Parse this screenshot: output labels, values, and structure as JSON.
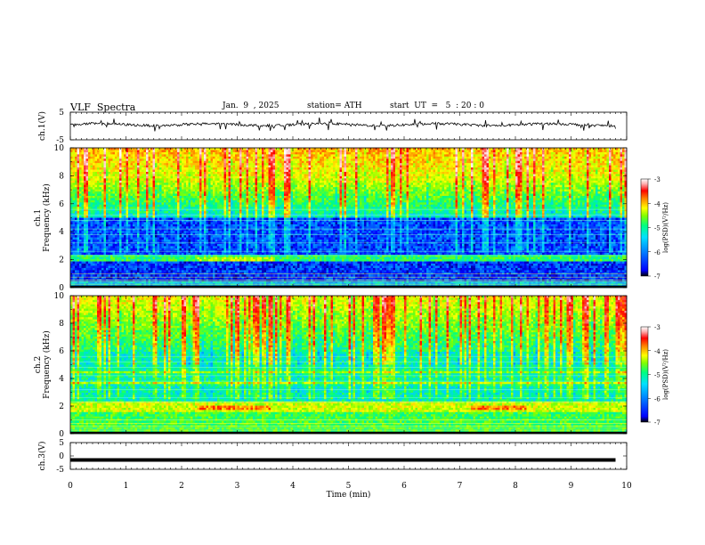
{
  "header": {
    "title": "VLF  Spectra",
    "date": "Jan.  9  , 2025",
    "station": "station= ATH",
    "start": "start  UT  =   5  : 20 : 0"
  },
  "chart_data": [
    {
      "type": "line",
      "title": "",
      "ylabel": "ch.1(V)",
      "ylim": [
        -5,
        5
      ],
      "yticks": [
        "5",
        "-5"
      ],
      "xlim": [
        0,
        10
      ],
      "series": [
        {
          "approx_level_v": 0.5,
          "color": "#000000"
        }
      ]
    },
    {
      "type": "heatmap",
      "ylabel": "ch.1\nFrequency  (kHz)",
      "ylim": [
        0,
        10
      ],
      "yticks": [
        "0",
        "2",
        "4",
        "6",
        "8",
        "10"
      ],
      "xlim": [
        0,
        10
      ],
      "colorbar": {
        "label": "log(PSD)(V²/Hz)",
        "ticks": [
          "-3",
          "-4",
          "-5",
          "-6",
          "-7"
        ],
        "range": [
          -7,
          -3
        ]
      }
    },
    {
      "type": "heatmap",
      "ylabel": "ch.2\nFrequency  (kHz)",
      "ylim": [
        0,
        10
      ],
      "yticks": [
        "0",
        "2",
        "4",
        "6",
        "8",
        "10"
      ],
      "xlim": [
        0,
        10
      ],
      "colorbar": {
        "label": "log(PSD)(V²/Hz)",
        "ticks": [
          "-3",
          "-4",
          "-5",
          "-6",
          "-7"
        ],
        "range": [
          -7,
          -3
        ]
      }
    },
    {
      "type": "line",
      "ylabel": "ch.3(V)",
      "ylim": [
        -5,
        5
      ],
      "yticks": [
        "5",
        "0",
        "-5"
      ],
      "xlim": [
        0,
        10
      ],
      "series": [
        {
          "approx_level_v": -1.5,
          "color": "#000000"
        }
      ]
    }
  ],
  "xaxis": {
    "label": "Time  (min)",
    "ticks": [
      "0",
      "1",
      "2",
      "3",
      "4",
      "5",
      "6",
      "7",
      "8",
      "9",
      "10"
    ]
  },
  "colors": {
    "ramp": [
      "#000000",
      "#0000ff",
      "#0080ff",
      "#00d0ff",
      "#00ff80",
      "#80ff00",
      "#ffff00",
      "#ff8000",
      "#ff0000",
      "#ffc0c0",
      "#ffffff"
    ]
  }
}
